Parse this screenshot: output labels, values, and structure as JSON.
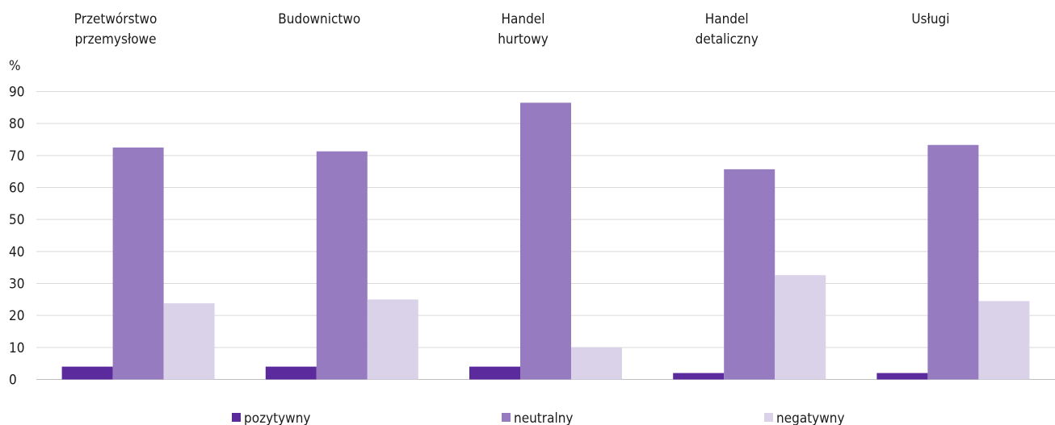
{
  "chart_data": {
    "type": "bar",
    "ylabel": "%",
    "ylim": [
      0,
      90
    ],
    "yticks": [
      "0",
      "10",
      "20",
      "30",
      "40",
      "50",
      "60",
      "70",
      "80",
      "90"
    ],
    "categories": [
      [
        "Przetwórstwo",
        "przemysłowe"
      ],
      [
        "Budownictwo"
      ],
      [
        "Handel",
        "hurtowy"
      ],
      [
        "Handel",
        "detaliczny"
      ],
      [
        "Usługi"
      ]
    ],
    "series": [
      {
        "name": "pozytywny",
        "color": "#5b2a9c",
        "values": [
          4,
          4,
          4,
          2,
          2
        ]
      },
      {
        "name": "neutralny",
        "color": "#967bc0",
        "values": [
          72.5,
          71.3,
          86.5,
          65.7,
          73.3
        ]
      },
      {
        "name": "negatywny",
        "color": "#dad2e9",
        "values": [
          23.8,
          25,
          10,
          32.6,
          24.5
        ]
      }
    ],
    "grid": true,
    "legend_position": "bottom"
  }
}
